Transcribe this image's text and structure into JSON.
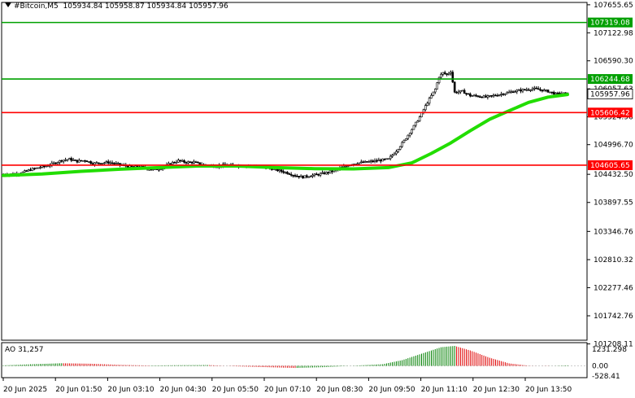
{
  "header": {
    "symbol": "#Bitcoin,M5",
    "ohlc": "105934.84 105958.87 105934.84 105957.96"
  },
  "subwindow": {
    "label": "AO 31,257",
    "ylabels": [
      "1231.298",
      "0.00",
      "-528.41"
    ]
  },
  "colors": {
    "ma": "#22dd00",
    "support": "#ff0000",
    "resistance": "#00a000",
    "ao_up": "#008000",
    "ao_down": "#e00000",
    "candle": "#000000"
  },
  "chart_data": {
    "type": "candlestick",
    "title": "#Bitcoin,M5",
    "ylim": [
      101278.5,
      107700
    ],
    "ylabels": [
      "107655.65",
      "107122.98",
      "106590.30",
      "106057.63",
      "105524.96",
      "104996.70",
      "104432.50",
      "103897.55",
      "103346.76",
      "102810.32",
      "102277.46",
      "101742.76",
      "101208.11"
    ],
    "xlabels": [
      "20 Jun 2025",
      "20 Jun 01:50",
      "20 Jun 03:10",
      "20 Jun 04:30",
      "20 Jun 05:50",
      "20 Jun 07:10",
      "20 Jun 08:30",
      "20 Jun 09:50",
      "20 Jun 11:10",
      "20 Jun 12:30",
      "20 Jun 13:50"
    ],
    "levels": [
      {
        "value": 107319.08,
        "label": "107319.08",
        "kind": "resistance"
      },
      {
        "value": 106244.68,
        "label": "106244.68",
        "kind": "resistance"
      },
      {
        "value": 105606.42,
        "label": "105606.42",
        "kind": "support"
      },
      {
        "value": 104605.65,
        "label": "104605.65",
        "kind": "support"
      }
    ],
    "current_price": {
      "value": 105957.96,
      "label": "105957.96"
    },
    "price_path": [
      [
        0,
        104430
      ],
      [
        6,
        104440
      ],
      [
        10,
        104470
      ],
      [
        14,
        104520
      ],
      [
        18,
        104560
      ],
      [
        22,
        104590
      ],
      [
        26,
        104640
      ],
      [
        30,
        104700
      ],
      [
        34,
        104720
      ],
      [
        38,
        104680
      ],
      [
        42,
        104700
      ],
      [
        46,
        104640
      ],
      [
        50,
        104650
      ],
      [
        54,
        104660
      ],
      [
        58,
        104630
      ],
      [
        62,
        104600
      ],
      [
        66,
        104570
      ],
      [
        70,
        104580
      ],
      [
        74,
        104540
      ],
      [
        78,
        104520
      ],
      [
        82,
        104560
      ],
      [
        86,
        104640
      ],
      [
        90,
        104690
      ],
      [
        94,
        104660
      ],
      [
        98,
        104660
      ],
      [
        102,
        104620
      ],
      [
        106,
        104600
      ],
      [
        110,
        104590
      ],
      [
        114,
        104610
      ],
      [
        118,
        104600
      ],
      [
        122,
        104600
      ],
      [
        126,
        104600
      ],
      [
        130,
        104580
      ],
      [
        134,
        104560
      ],
      [
        138,
        104540
      ],
      [
        142,
        104500
      ],
      [
        146,
        104460
      ],
      [
        150,
        104410
      ],
      [
        154,
        104380
      ],
      [
        158,
        104410
      ],
      [
        162,
        104430
      ],
      [
        166,
        104460
      ],
      [
        170,
        104500
      ],
      [
        174,
        104560
      ],
      [
        178,
        104620
      ],
      [
        182,
        104650
      ],
      [
        186,
        104660
      ],
      [
        190,
        104680
      ],
      [
        194,
        104700
      ],
      [
        198,
        104720
      ],
      [
        202,
        104880
      ],
      [
        206,
        105070
      ],
      [
        210,
        105290
      ],
      [
        214,
        105520
      ],
      [
        218,
        105800
      ],
      [
        222,
        106050
      ],
      [
        224,
        106290
      ],
      [
        226,
        106360
      ],
      [
        228,
        106330
      ],
      [
        230,
        106390
      ],
      [
        232,
        105990
      ],
      [
        236,
        106010
      ],
      [
        240,
        105930
      ],
      [
        244,
        105920
      ],
      [
        248,
        105900
      ],
      [
        252,
        105930
      ],
      [
        256,
        105960
      ],
      [
        260,
        105990
      ],
      [
        264,
        106020
      ],
      [
        268,
        106040
      ],
      [
        272,
        106060
      ],
      [
        276,
        106040
      ],
      [
        280,
        106010
      ],
      [
        284,
        105960
      ],
      [
        288,
        105970
      ],
      [
        290,
        105958
      ]
    ],
    "ma_path": [
      [
        0,
        104410
      ],
      [
        20,
        104440
      ],
      [
        40,
        104490
      ],
      [
        60,
        104530
      ],
      [
        80,
        104560
      ],
      [
        100,
        104590
      ],
      [
        120,
        104590
      ],
      [
        140,
        104560
      ],
      [
        160,
        104540
      ],
      [
        180,
        104535
      ],
      [
        198,
        104560
      ],
      [
        210,
        104650
      ],
      [
        220,
        104830
      ],
      [
        230,
        105030
      ],
      [
        240,
        105260
      ],
      [
        250,
        105480
      ],
      [
        260,
        105640
      ],
      [
        270,
        105800
      ],
      [
        280,
        105900
      ],
      [
        290,
        105950
      ]
    ],
    "ao_path": [
      [
        0,
        30
      ],
      [
        15,
        100
      ],
      [
        30,
        160
      ],
      [
        45,
        130
      ],
      [
        60,
        60
      ],
      [
        75,
        20
      ],
      [
        90,
        40
      ],
      [
        105,
        50
      ],
      [
        120,
        -30
      ],
      [
        135,
        -80
      ],
      [
        150,
        -130
      ],
      [
        165,
        -80
      ],
      [
        180,
        10
      ],
      [
        195,
        100
      ],
      [
        205,
        350
      ],
      [
        215,
        750
      ],
      [
        225,
        1150
      ],
      [
        232,
        1231
      ],
      [
        240,
        950
      ],
      [
        250,
        500
      ],
      [
        260,
        150
      ],
      [
        270,
        10
      ],
      [
        280,
        -10
      ],
      [
        290,
        31
      ]
    ]
  }
}
